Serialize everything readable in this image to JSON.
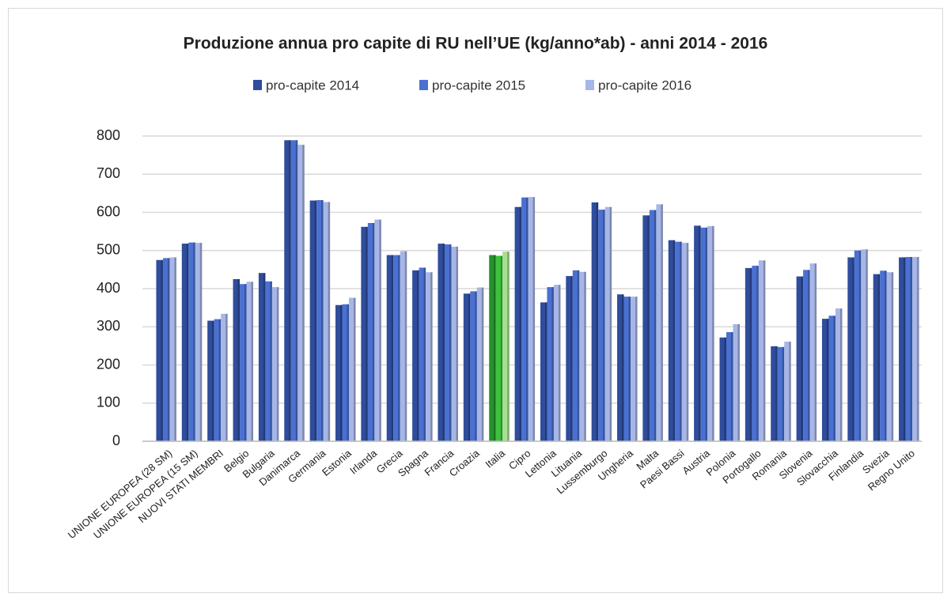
{
  "chart_data": {
    "type": "bar",
    "title": "Produzione annua pro capite di RU nell’UE (kg/anno*ab) - anni 2014 - 2016",
    "categories": [
      "UNIONE EUROPEA (28 SM)",
      "UNIONE EUROPEA (15 SM)",
      "NUOVI STATI MEMBRI",
      "Belgio",
      "Bulgaria",
      "Danimarca",
      "Germania",
      "Estonia",
      "Irlanda",
      "Grecia",
      "Spagna",
      "Francia",
      "Croazia",
      "Italia",
      "Cipro",
      "Lettonia",
      "Lituania",
      "Lussemburgo",
      "Ungheria",
      "Malta",
      "Paesi Bassi",
      "Austria",
      "Polonia",
      "Portogallo",
      "Romania",
      "Slovenia",
      "Slovacchia",
      "Finlandia",
      "Svezia",
      "Regno Unito"
    ],
    "series": [
      {
        "name": "pro-capite 2014",
        "color": "#2f4d9c",
        "highlight_color": "#23932a",
        "values": [
          475,
          518,
          316,
          425,
          441,
          789,
          631,
          357,
          562,
          488,
          448,
          518,
          387,
          488,
          614,
          364,
          433,
          626,
          385,
          592,
          527,
          565,
          272,
          454,
          249,
          432,
          321,
          482,
          438,
          482
        ]
      },
      {
        "name": "pro-capite 2015",
        "color": "#4a70d2",
        "highlight_color": "#3cc23f",
        "values": [
          480,
          521,
          320,
          412,
          419,
          789,
          632,
          359,
          572,
          488,
          455,
          516,
          393,
          486,
          639,
          404,
          448,
          607,
          379,
          606,
          523,
          560,
          286,
          460,
          247,
          449,
          329,
          500,
          447,
          483
        ]
      },
      {
        "name": "pro-capite 2016",
        "color": "#a7b6e6",
        "highlight_color": "#a6df8e",
        "values": [
          482,
          520,
          334,
          418,
          404,
          777,
          627,
          376,
          581,
          498,
          443,
          510,
          403,
          497,
          640,
          410,
          444,
          614,
          379,
          621,
          520,
          564,
          307,
          474,
          261,
          466,
          348,
          503,
          443,
          483
        ]
      }
    ],
    "highlight": "Italia",
    "ylim": [
      0,
      800
    ],
    "yticks": [
      0,
      100,
      200,
      300,
      400,
      500,
      600,
      700,
      800
    ],
    "grid": true,
    "legend": "top"
  }
}
